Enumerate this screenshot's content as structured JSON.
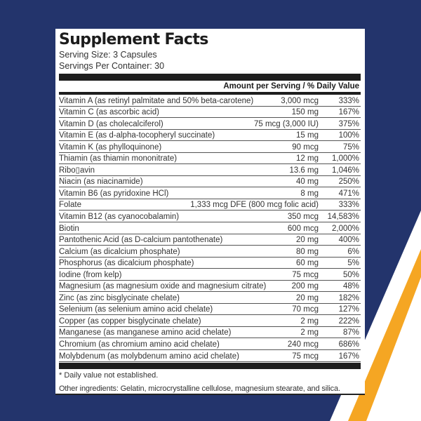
{
  "colors": {
    "background_navy": "#23346c",
    "stripe_white": "#ffffff",
    "stripe_orange": "#f5a623",
    "panel": "#ffffff",
    "bar": "#1e1e1e"
  },
  "label": {
    "title": "Supplement Facts",
    "serving_size": "Serving Size: 3 Capsules",
    "servings_per_container": "Servings Per Container: 30",
    "amount_header": "Amount per Serving / % Daily Value",
    "rows": [
      {
        "name": "Vitamin A (as retinyl palmitate and 50% beta-carotene)",
        "amount": "3,000 mcg",
        "dv": "333%"
      },
      {
        "name": "Vitamin C (as ascorbic acid)",
        "amount": "150 mg",
        "dv": "167%"
      },
      {
        "name": "Vitamin D (as cholecalciferol)",
        "amount": "75 mcg (3,000 IU)",
        "dv": "375%"
      },
      {
        "name": "Vitamin E (as d-alpha-tocopheryl succinate)",
        "amount": "15 mg",
        "dv": "100%"
      },
      {
        "name": "Vitamin K (as phylloquinone)",
        "amount": "90 mcg",
        "dv": "75%"
      },
      {
        "name": "Thiamin (as thiamin mononitrate)",
        "amount": "12 mg",
        "dv": "1,000%"
      },
      {
        "name": "Ribo▯avin",
        "amount": "13.6 mg",
        "dv": "1,046%"
      },
      {
        "name": "Niacin (as niacinamide)",
        "amount": "40 mg",
        "dv": "250%"
      },
      {
        "name": "Vitamin B6 (as pyridoxine HCl)",
        "amount": "8 mg",
        "dv": "471%"
      },
      {
        "name": "Folate",
        "amount": "1,333 mcg DFE (800 mcg folic acid)",
        "dv": "333%"
      },
      {
        "name": "Vitamin B12 (as cyanocobalamin)",
        "amount": "350 mcg",
        "dv": "14,583%"
      },
      {
        "name": "Biotin",
        "amount": "600 mcg",
        "dv": "2,000%"
      },
      {
        "name": "Pantothenic Acid (as D-calcium pantothenate)",
        "amount": "20 mg",
        "dv": "400%"
      },
      {
        "name": "Calcium (as dicalcium phosphate)",
        "amount": "80 mg",
        "dv": "6%"
      },
      {
        "name": "Phosphorus (as dicalcium phosphate)",
        "amount": "60 mg",
        "dv": "5%"
      },
      {
        "name": "Iodine (from kelp)",
        "amount": "75 mcg",
        "dv": "50%"
      },
      {
        "name": "Magnesium (as magnesium oxide and magnesium citrate)",
        "amount": "200 mg",
        "dv": "48%"
      },
      {
        "name": "Zinc (as zinc bisglycinate chelate)",
        "amount": "20 mg",
        "dv": "182%"
      },
      {
        "name": "Selenium (as selenium amino acid chelate)",
        "amount": "70 mcg",
        "dv": "127%"
      },
      {
        "name": "Copper (as copper bisglycinate chelate)",
        "amount": "2 mg",
        "dv": "222%"
      },
      {
        "name": "Manganese (as manganese amino acid chelate)",
        "amount": "2 mg",
        "dv": "87%"
      },
      {
        "name": "Chromium (as chromium amino acid chelate)",
        "amount": "240 mcg",
        "dv": "686%"
      },
      {
        "name": "Molybdenum (as molybdenum amino acid chelate)",
        "amount": "75 mcg",
        "dv": "167%"
      }
    ],
    "footnote": "* Daily value not established.",
    "other_ingredients": "Other ingredients: Gelatin, microcrystalline cellulose, magnesium stearate, and silica."
  }
}
